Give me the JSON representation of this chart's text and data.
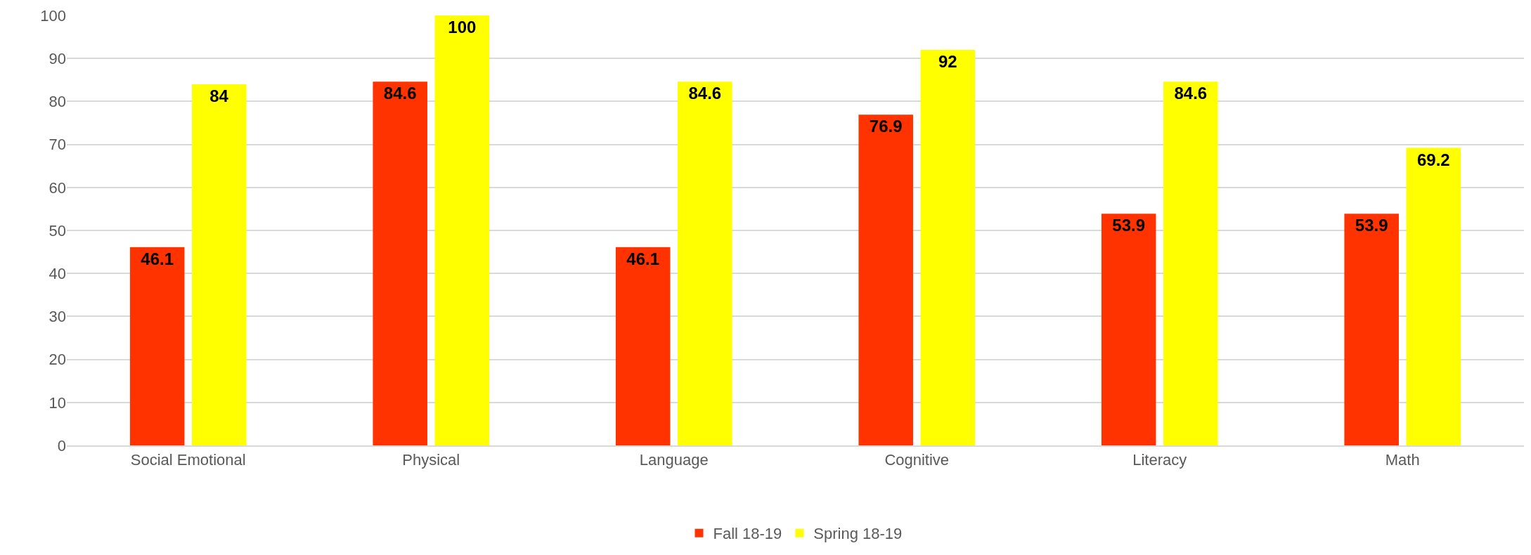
{
  "chart_data": {
    "type": "bar",
    "categories": [
      "Social Emotional",
      "Physical",
      "Language",
      "Cognitive",
      "Literacy",
      "Math"
    ],
    "series": [
      {
        "name": "Fall 18-19",
        "color": "#ff3300",
        "values": [
          46.1,
          84.6,
          46.1,
          76.9,
          53.9,
          53.9
        ]
      },
      {
        "name": "Spring 18-19",
        "color": "#ffff00",
        "values": [
          84,
          100,
          84.6,
          92,
          84.6,
          69.2
        ]
      }
    ],
    "ylim": [
      0,
      100
    ],
    "yticks": [
      0,
      10,
      20,
      30,
      40,
      50,
      60,
      70,
      80,
      90,
      100
    ],
    "grid": "y",
    "legend": "bottom",
    "data_labels": true
  }
}
